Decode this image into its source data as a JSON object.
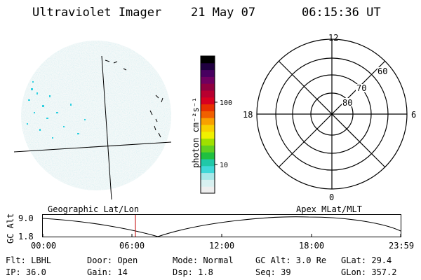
{
  "header": {
    "instrument": "Ultraviolet Imager",
    "date": "21 May 07",
    "time": "06:15:36 UT"
  },
  "colorbar": {
    "unit_label": "photon cm⁻²s⁻¹",
    "ticks": [
      "100",
      "10"
    ],
    "colors": [
      "#eeeeee",
      "#d8f0f0",
      "#a8e8e8",
      "#40d8d8",
      "#20c8a8",
      "#20c040",
      "#60d020",
      "#a0e000",
      "#f0f000",
      "#f8d000",
      "#f8a000",
      "#f06000",
      "#e83000",
      "#d80020",
      "#b80030",
      "#900040",
      "#700060",
      "#480060",
      "#200040",
      "#000000"
    ]
  },
  "polar_plot": {
    "lat_labels": [
      "60",
      "70",
      "80"
    ],
    "mlt_labels": {
      "top": "12",
      "bottom": "0",
      "left": "18",
      "right": "6"
    }
  },
  "altitude_plot": {
    "ylabel": "GC Alt",
    "y_ticks": [
      "9.0",
      "1.8"
    ],
    "left_title": "Geographic Lat/Lon",
    "right_title": "Apex MLat/MLT",
    "x_ticks": [
      "00:00",
      "06:00",
      "12:00",
      "18:00",
      "23:59"
    ],
    "current_time_color": "#c00000"
  },
  "info": {
    "row1": {
      "flt": "Flt: LBHL",
      "door": "Door: Open",
      "mode": "Mode: Normal",
      "gcalt": "GC Alt: 3.0 Re",
      "glat": "GLat:  29.4"
    },
    "row2": {
      "ip": "IP: 36.0",
      "gain": "Gain: 14",
      "dsp": "Dsp:    1.8",
      "seq": "Seq: 39",
      "glon": "GLon: 357.2"
    }
  }
}
